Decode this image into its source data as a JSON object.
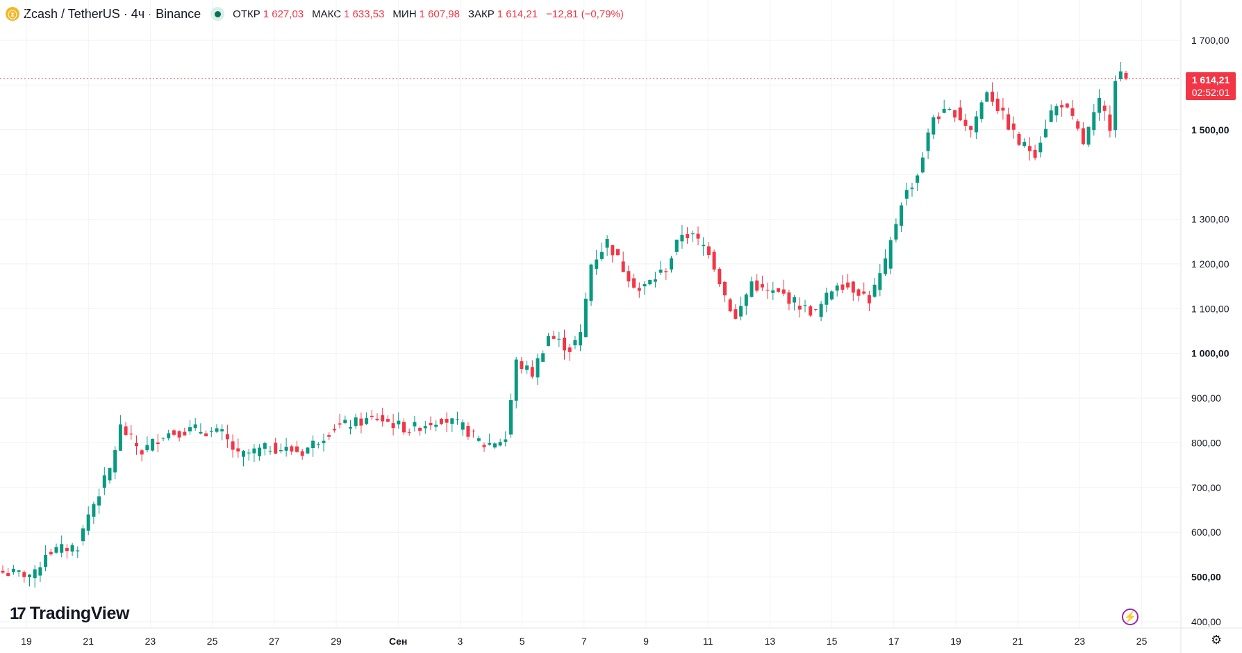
{
  "header": {
    "title": "Zcash / TetherUS · 4ч · Binance",
    "open_label": "ОТКР",
    "open": "1 627,03",
    "high_label": "МАКС",
    "high": "1 633,53",
    "low_label": "МИН",
    "low": "1 607,98",
    "close_label": "ЗАКР",
    "close": "1 614,21",
    "change": "−12,81 (−0,79%)"
  },
  "price_label": {
    "price": "1 614,21",
    "countdown": "02:52:01"
  },
  "logo": {
    "mark": "17",
    "text": "TradingView"
  },
  "icons": {
    "coin": "zcash-coin-icon",
    "bolt": "lightning-icon",
    "gear": "settings-gear-icon"
  },
  "colors": {
    "up": "#089981",
    "down": "#f23645",
    "last_price": "#f23645"
  },
  "chart_data": {
    "type": "candlestick",
    "ylim": [
      400,
      1720
    ],
    "yticks": [
      400,
      500,
      600,
      700,
      800,
      900,
      1000,
      1100,
      1200,
      1300,
      1400,
      1500,
      1600,
      1700
    ],
    "ytick_labels": [
      "400,00",
      "500,00",
      "600,00",
      "700,00",
      "800,00",
      "900,00",
      "1 000,00",
      "1 100,00",
      "1 200,00",
      "1 300,00",
      "",
      "1 500,00",
      "",
      "1 700,00"
    ],
    "bold_ticks": [
      500,
      1000,
      1500
    ],
    "xtick_labels": [
      "19",
      "21",
      "23",
      "25",
      "27",
      "29",
      "Сен",
      "3",
      "5",
      "7",
      "9",
      "11",
      "13",
      "15",
      "17",
      "19",
      "21",
      "23",
      "25"
    ],
    "last_price": 1614.21,
    "grid": true,
    "legend": "none",
    "anchors": [
      [
        0,
        510
      ],
      [
        6,
        505
      ],
      [
        8,
        555
      ],
      [
        14,
        570
      ],
      [
        16,
        640
      ],
      [
        20,
        740
      ],
      [
        22,
        835
      ],
      [
        26,
        780
      ],
      [
        30,
        820
      ],
      [
        36,
        830
      ],
      [
        41,
        820
      ],
      [
        44,
        770
      ],
      [
        50,
        790
      ],
      [
        56,
        780
      ],
      [
        62,
        835
      ],
      [
        70,
        855
      ],
      [
        76,
        830
      ],
      [
        82,
        855
      ],
      [
        86,
        835
      ],
      [
        90,
        795
      ],
      [
        94,
        810
      ],
      [
        96,
        980
      ],
      [
        99,
        955
      ],
      [
        102,
        1040
      ],
      [
        106,
        1010
      ],
      [
        108,
        1040
      ],
      [
        110,
        1200
      ],
      [
        113,
        1250
      ],
      [
        116,
        1190
      ],
      [
        119,
        1140
      ],
      [
        124,
        1190
      ],
      [
        127,
        1270
      ],
      [
        129,
        1260
      ],
      [
        132,
        1230
      ],
      [
        135,
        1130
      ],
      [
        137,
        1075
      ],
      [
        140,
        1160
      ],
      [
        142,
        1140
      ],
      [
        146,
        1130
      ],
      [
        150,
        1100
      ],
      [
        152,
        1090
      ],
      [
        156,
        1160
      ],
      [
        160,
        1140
      ],
      [
        162,
        1120
      ],
      [
        165,
        1200
      ],
      [
        168,
        1340
      ],
      [
        171,
        1400
      ],
      [
        174,
        1530
      ],
      [
        178,
        1540
      ],
      [
        181,
        1500
      ],
      [
        184,
        1590
      ],
      [
        187,
        1530
      ],
      [
        190,
        1470
      ],
      [
        193,
        1450
      ],
      [
        196,
        1540
      ],
      [
        198,
        1560
      ],
      [
        200,
        1520
      ],
      [
        202,
        1470
      ],
      [
        205,
        1560
      ],
      [
        207,
        1510
      ],
      [
        208,
        1620
      ],
      [
        209,
        1627
      ],
      [
        210,
        1614.21
      ]
    ]
  }
}
